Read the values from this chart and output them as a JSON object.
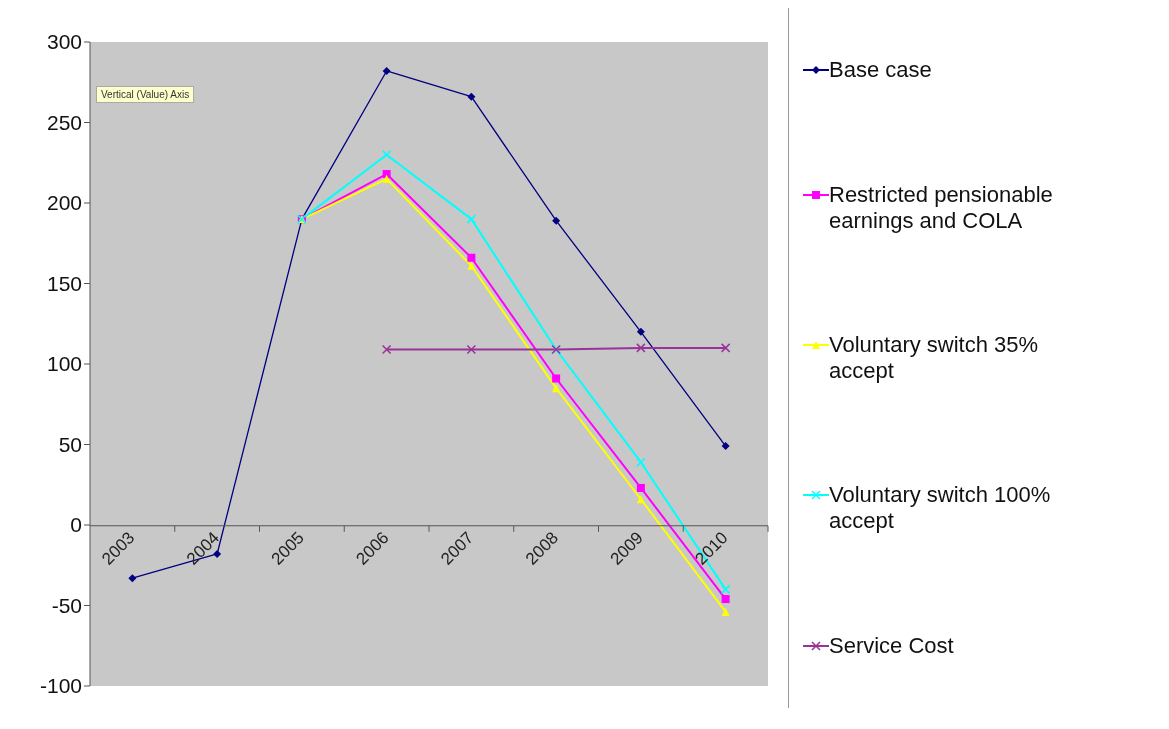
{
  "chart_data": {
    "type": "line",
    "categories": [
      "2003",
      "2004",
      "2005",
      "2006",
      "2007",
      "2008",
      "2009",
      "2010"
    ],
    "series": [
      {
        "name": "Base case",
        "color": "#000080",
        "marker": "diamond",
        "values": [
          -33,
          -18,
          190,
          282,
          266,
          189,
          120,
          49
        ]
      },
      {
        "name": "Restricted pensionable earnings and COLA",
        "color": "#ff00ff",
        "marker": "square",
        "values": [
          null,
          null,
          190,
          218,
          166,
          91,
          23,
          -46
        ]
      },
      {
        "name": "Voluntary switch 35% accept",
        "color": "#ffff00",
        "marker": "triangle",
        "values": [
          null,
          null,
          190,
          215,
          161,
          85,
          16,
          -54
        ]
      },
      {
        "name": "Voluntary switch 100% accept",
        "color": "#00ffff",
        "marker": "cross",
        "values": [
          null,
          null,
          190,
          230,
          190,
          109,
          39,
          -40
        ]
      },
      {
        "name": "Service Cost",
        "color": "#993399",
        "marker": "cross",
        "values": [
          null,
          null,
          null,
          109,
          109,
          109,
          110,
          110
        ]
      }
    ],
    "ylim": [
      -100,
      300
    ],
    "yticks": [
      -100,
      -50,
      0,
      50,
      100,
      150,
      200,
      250,
      300
    ],
    "grid": false,
    "legend": "right",
    "annotations": [
      "Vertical (Value) Axis"
    ]
  }
}
